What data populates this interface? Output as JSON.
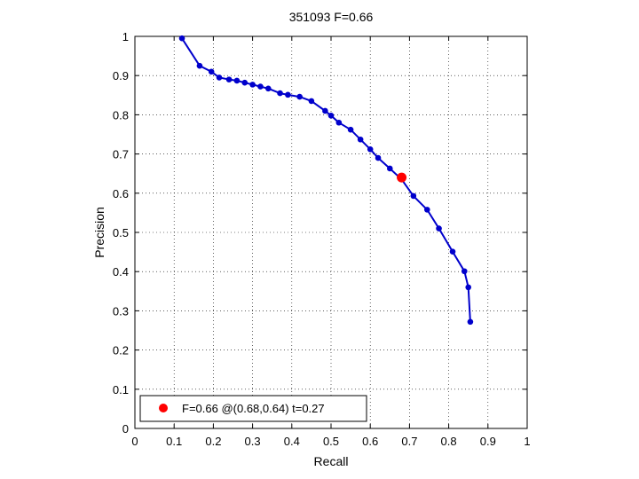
{
  "chart_data": {
    "type": "line",
    "title": "351093 F=0.66",
    "xlabel": "Recall",
    "ylabel": "Precision",
    "xlim": [
      0,
      1
    ],
    "ylim": [
      0,
      1
    ],
    "xticks": [
      "0",
      "0.1",
      "0.2",
      "0.3",
      "0.4",
      "0.5",
      "0.6",
      "0.7",
      "0.8",
      "0.9",
      "1"
    ],
    "yticks": [
      "0",
      "0.1",
      "0.2",
      "0.3",
      "0.4",
      "0.5",
      "0.6",
      "0.7",
      "0.8",
      "0.9",
      "1"
    ],
    "grid": true,
    "legend_position": "bottom-left",
    "series": [
      {
        "color": "#0000cc",
        "points": [
          [
            0.12,
            0.995
          ],
          [
            0.165,
            0.925
          ],
          [
            0.195,
            0.91
          ],
          [
            0.215,
            0.895
          ],
          [
            0.24,
            0.89
          ],
          [
            0.26,
            0.887
          ],
          [
            0.28,
            0.882
          ],
          [
            0.3,
            0.877
          ],
          [
            0.32,
            0.872
          ],
          [
            0.34,
            0.867
          ],
          [
            0.37,
            0.855
          ],
          [
            0.39,
            0.851
          ],
          [
            0.42,
            0.846
          ],
          [
            0.45,
            0.835
          ],
          [
            0.485,
            0.81
          ],
          [
            0.5,
            0.798
          ],
          [
            0.52,
            0.78
          ],
          [
            0.55,
            0.762
          ],
          [
            0.575,
            0.737
          ],
          [
            0.6,
            0.712
          ],
          [
            0.62,
            0.69
          ],
          [
            0.65,
            0.663
          ],
          [
            0.68,
            0.635
          ],
          [
            0.71,
            0.593
          ],
          [
            0.745,
            0.558
          ],
          [
            0.775,
            0.51
          ],
          [
            0.81,
            0.451
          ],
          [
            0.84,
            0.401
          ],
          [
            0.85,
            0.36
          ],
          [
            0.855,
            0.272
          ]
        ]
      }
    ],
    "marker": {
      "x": 0.68,
      "y": 0.64,
      "color": "#ff0000",
      "label": "F=0.66 @(0.68,0.64) t=0.27"
    }
  }
}
